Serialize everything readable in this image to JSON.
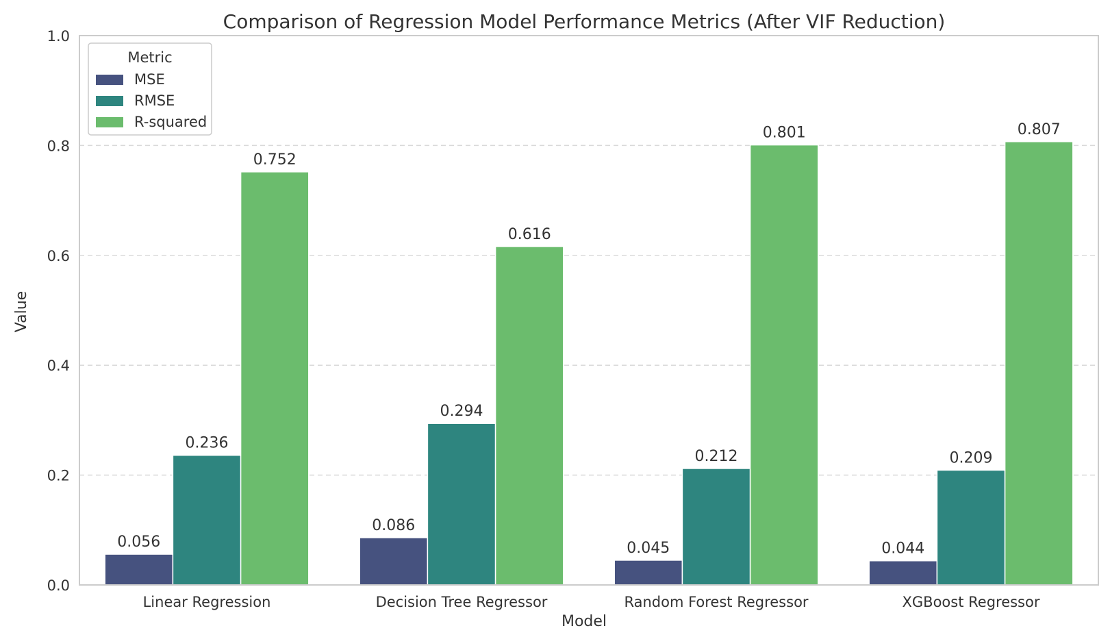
{
  "chart_data": {
    "type": "bar",
    "title": "Comparison of Regression Model Performance Metrics (After VIF Reduction)",
    "xlabel": "Model",
    "ylabel": "Value",
    "ylim": [
      0,
      1.0
    ],
    "yticks": [
      "0.0",
      "0.2",
      "0.4",
      "0.6",
      "0.8",
      "1.0"
    ],
    "grid": "horizontal dashed",
    "legend": {
      "title": "Metric",
      "placement": "top-left"
    },
    "categories": [
      "Linear Regression",
      "Decision Tree Regressor",
      "Random Forest Regressor",
      "XGBoost Regressor"
    ],
    "series": [
      {
        "name": "MSE",
        "color": "#46527f",
        "values": [
          0.056,
          0.086,
          0.045,
          0.044
        ],
        "labels": [
          "0.056",
          "0.086",
          "0.045",
          "0.044"
        ]
      },
      {
        "name": "RMSE",
        "color": "#2e857f",
        "values": [
          0.236,
          0.294,
          0.212,
          0.209
        ],
        "labels": [
          "0.236",
          "0.294",
          "0.212",
          "0.209"
        ]
      },
      {
        "name": "R-squared",
        "color": "#6bbc6d",
        "values": [
          0.752,
          0.616,
          0.801,
          0.807
        ],
        "labels": [
          "0.752",
          "0.616",
          "0.801",
          "0.807"
        ]
      }
    ]
  }
}
